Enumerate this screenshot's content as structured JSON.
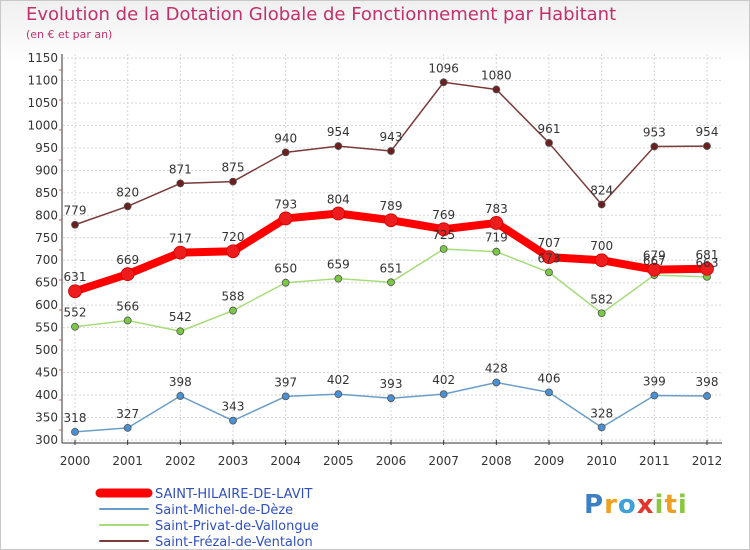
{
  "title": "Evolution de la Dotation Globale de Fonctionnement par Habitant",
  "subtitle": "(en € et par an)",
  "logo_text": "Proxiti",
  "chart_data": {
    "type": "line",
    "x": [
      "2000",
      "2001",
      "2002",
      "2003",
      "2004",
      "2005",
      "2006",
      "2007",
      "2008",
      "2009",
      "2010",
      "2011",
      "2012"
    ],
    "ylim": [
      300,
      1150
    ],
    "yticks": [
      300,
      350,
      400,
      450,
      500,
      550,
      600,
      650,
      700,
      750,
      800,
      850,
      900,
      950,
      1000,
      1050,
      1100,
      1150
    ],
    "grid": true,
    "legend_position": "bottom-left",
    "series": [
      {
        "name": "SAINT-HILAIRE-DE-LAVIT",
        "color": "#ff0000",
        "marker": "#ee1c1c",
        "width": 8,
        "values": [
          631,
          669,
          717,
          720,
          793,
          804,
          789,
          769,
          783,
          707,
          700,
          679,
          681
        ]
      },
      {
        "name": "Saint-Michel-de-Dèze",
        "color": "#6a9ec9",
        "marker": "#4a90d4",
        "width": 1.5,
        "values": [
          318,
          327,
          398,
          343,
          397,
          402,
          393,
          402,
          428,
          406,
          328,
          399,
          398
        ]
      },
      {
        "name": "Saint-Privat-de-Vallongue",
        "color": "#a8dc7a",
        "marker": "#7ac943",
        "width": 1.5,
        "values": [
          552,
          566,
          542,
          588,
          650,
          659,
          651,
          725,
          719,
          673,
          582,
          667,
          663
        ]
      },
      {
        "name": "Saint-Frézal-de-Ventalon",
        "color": "#7a3a3a",
        "marker": "#6b1f1f",
        "width": 1.5,
        "values": [
          779,
          820,
          871,
          875,
          940,
          954,
          943,
          1096,
          1080,
          961,
          824,
          953,
          954
        ]
      }
    ]
  }
}
